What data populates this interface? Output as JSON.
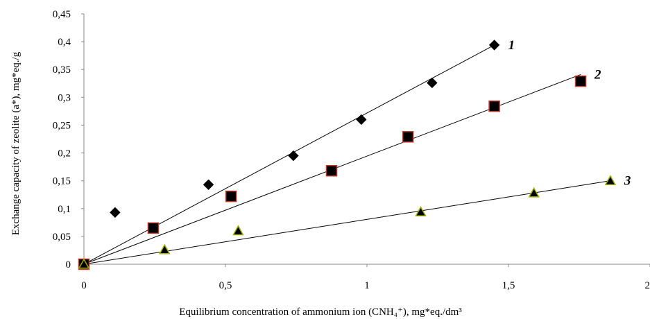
{
  "chart_data": {
    "type": "scatter",
    "xlabel": "Equilibrium concentration of ammonium  ion  (CNH₄⁺), mg*eq./dm³",
    "ylabel": "Exchange capacity of zeolite (a*), mg*eq./g",
    "xlim": [
      0,
      2
    ],
    "ylim": [
      0,
      0.45
    ],
    "x_ticks": [
      "0",
      "0,5",
      "1",
      "1,5",
      "2"
    ],
    "y_ticks": [
      "0",
      "0,05",
      "0,1",
      "0,15",
      "0,2",
      "0,25",
      "0,3",
      "0,35",
      "0,4",
      "0,45"
    ],
    "grid": false,
    "series": [
      {
        "name": "1",
        "marker": "diamond",
        "fill": "#000000",
        "stroke": "#000000",
        "x": [
          0,
          0.11,
          0.44,
          0.74,
          0.98,
          1.23,
          1.45
        ],
        "y": [
          0,
          0.093,
          0.143,
          0.195,
          0.26,
          0.326,
          0.394
        ],
        "fit_line": [
          [
            0,
            0
          ],
          [
            1.45,
            0.394
          ]
        ]
      },
      {
        "name": "2",
        "marker": "square",
        "fill": "#000000",
        "stroke": "#c0392b",
        "x": [
          0,
          0.245,
          0.52,
          0.875,
          1.145,
          1.45,
          1.755
        ],
        "y": [
          0,
          0.065,
          0.122,
          0.168,
          0.229,
          0.284,
          0.329
        ],
        "fit_line": [
          [
            0,
            0
          ],
          [
            1.755,
            0.341
          ]
        ]
      },
      {
        "name": "3",
        "marker": "triangle",
        "fill": "#000000",
        "stroke": "#a0b000",
        "x": [
          0,
          0.285,
          0.545,
          1.19,
          1.59,
          1.86
        ],
        "y": [
          0,
          0.026,
          0.06,
          0.094,
          0.128,
          0.15
        ],
        "fit_line": [
          [
            0,
            0
          ],
          [
            1.86,
            0.15
          ]
        ]
      }
    ]
  }
}
